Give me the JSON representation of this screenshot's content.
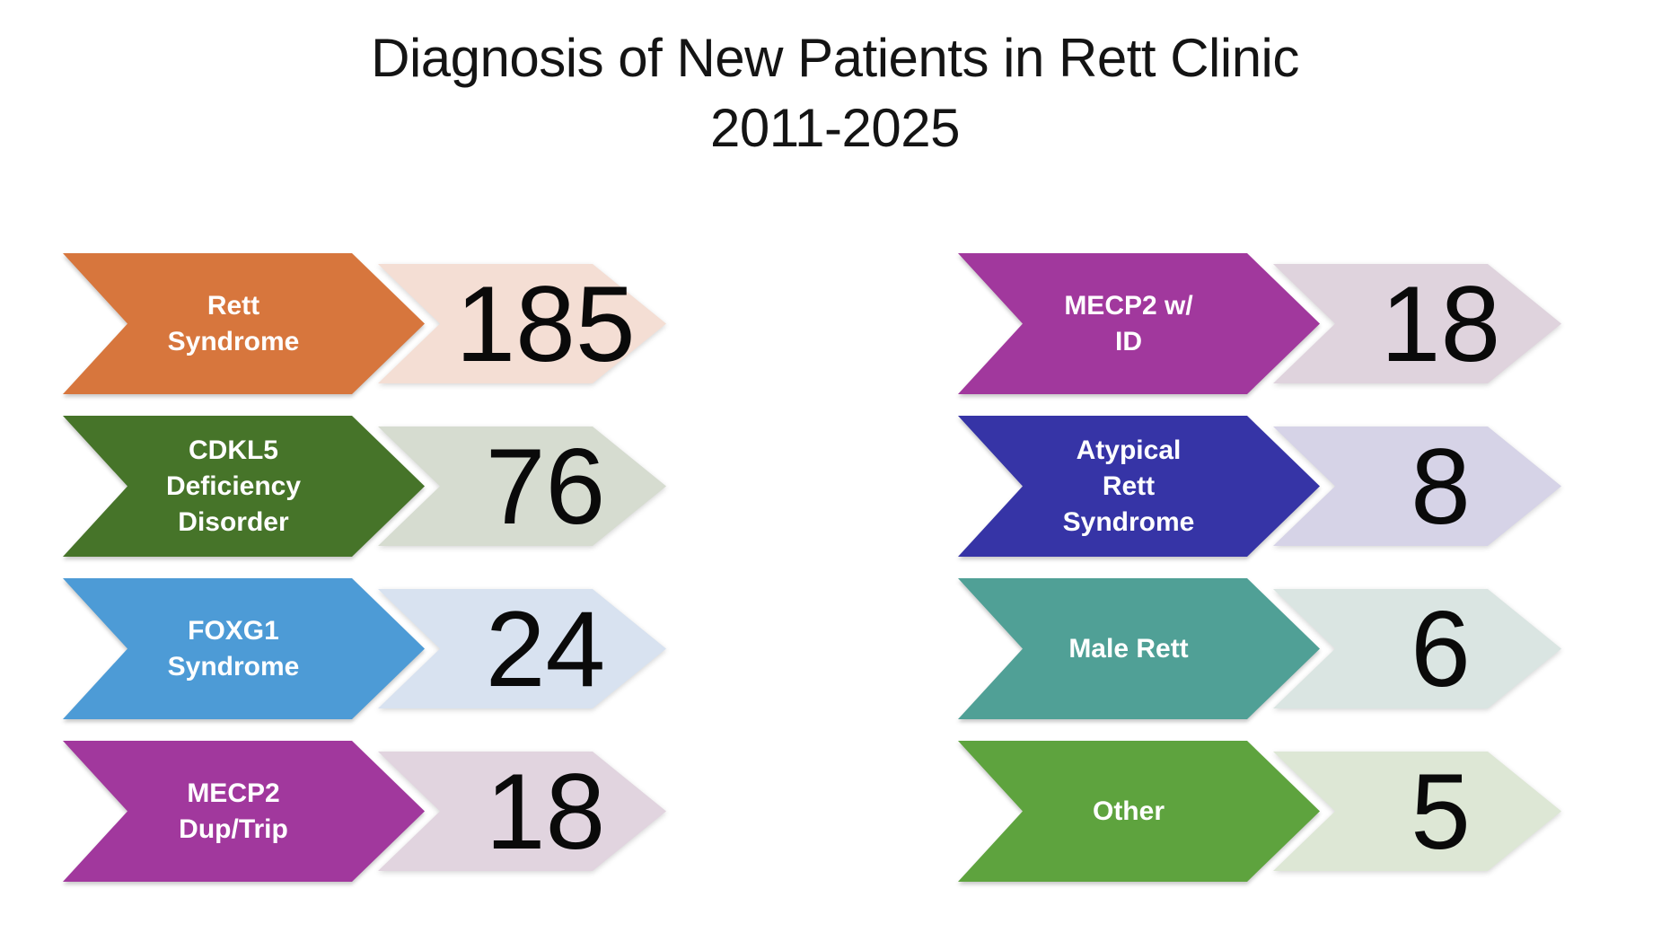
{
  "title": {
    "line1": "Diagnosis of New Patients in Rett Clinic",
    "line2": "2011-2025"
  },
  "columns": [
    {
      "rows": [
        {
          "label": "Rett\nSyndrome",
          "value": "185",
          "fill": "#D7763D",
          "tint": "#F4DED4"
        },
        {
          "label": "CDKL5\nDeficiency\nDisorder",
          "value": "76",
          "fill": "#467429",
          "tint": "#D6DCD0"
        },
        {
          "label": "FOXG1\nSyndrome",
          "value": "24",
          "fill": "#4D9BD6",
          "tint": "#D8E2F0"
        },
        {
          "label": "MECP2\nDup/Trip",
          "value": "18",
          "fill": "#A1389D",
          "tint": "#E1D4DF"
        }
      ]
    },
    {
      "rows": [
        {
          "label": "MECP2 w/\nID",
          "value": "18",
          "fill": "#A1389D",
          "tint": "#DFD3DD"
        },
        {
          "label": "Atypical\nRett\nSyndrome",
          "value": "8",
          "fill": "#3634A6",
          "tint": "#D6D3E7"
        },
        {
          "label": "Male Rett",
          "value": "6",
          "fill": "#50A096",
          "tint": "#DAE5E2"
        },
        {
          "label": "Other",
          "value": "5",
          "fill": "#5EA33E",
          "tint": "#DDE7D5"
        }
      ]
    }
  ],
  "chart_data": {
    "type": "table",
    "title": "Diagnosis of New Patients in Rett Clinic 2011-2025",
    "categories": [
      "Rett Syndrome",
      "CDKL5 Deficiency Disorder",
      "FOXG1 Syndrome",
      "MECP2 Dup/Trip",
      "MECP2 w/ ID",
      "Atypical Rett Syndrome",
      "Male Rett",
      "Other"
    ],
    "values": [
      185,
      76,
      24,
      18,
      18,
      8,
      6,
      5
    ],
    "legend": "none",
    "layout": "two-column arrow list, label arrow colored with white text, value arrow light tint with black number"
  }
}
